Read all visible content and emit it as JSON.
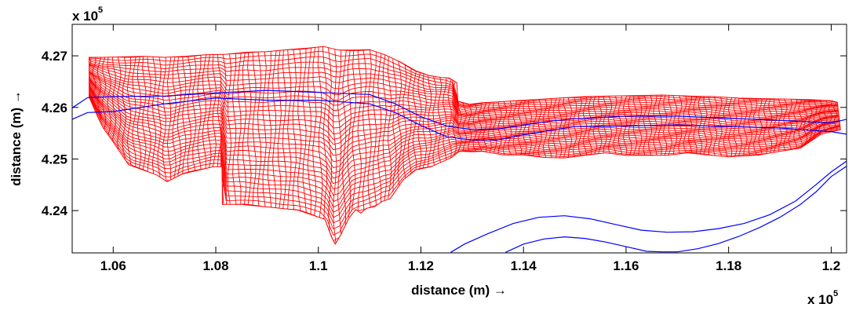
{
  "chart_data": {
    "type": "line",
    "xlabel": "distance (m) →",
    "ylabel": "distance (m) →",
    "x_multiplier": "x 10",
    "x_multiplier_exp": "5",
    "y_multiplier": "x 10",
    "y_multiplier_exp": "5",
    "xlim": [
      1.052,
      1.203
    ],
    "ylim": [
      4.2318,
      4.2761
    ],
    "x_ticks": [
      1.06,
      1.08,
      1.1,
      1.12,
      1.14,
      1.16,
      1.18,
      1.2
    ],
    "x_tick_labels": [
      "1.06",
      "1.08",
      "1.1",
      "1.12",
      "1.14",
      "1.16",
      "1.18",
      "1.2"
    ],
    "y_ticks": [
      4.24,
      4.25,
      4.26,
      4.27
    ],
    "y_tick_labels": [
      "4.24",
      "4.25",
      "4.26",
      "4.27"
    ],
    "grid": false,
    "colors": {
      "mesh": "#ff0000",
      "channel": "#0000ff",
      "axes": "#000000"
    },
    "series": [
      {
        "kind": "mesh-outline",
        "top": [
          [
            1.0553,
            4.2697
          ],
          [
            1.058,
            4.2697
          ],
          [
            1.062,
            4.2698
          ],
          [
            1.066,
            4.2699
          ],
          [
            1.07,
            4.2697
          ],
          [
            1.074,
            4.2699
          ],
          [
            1.078,
            4.2702
          ],
          [
            1.082,
            4.2703
          ],
          [
            1.086,
            4.2707
          ],
          [
            1.09,
            4.2708
          ],
          [
            1.094,
            4.2712
          ],
          [
            1.098,
            4.2715
          ],
          [
            1.101,
            4.2718
          ],
          [
            1.104,
            4.2711
          ],
          [
            1.107,
            4.2711
          ],
          [
            1.11,
            4.2712
          ],
          [
            1.113,
            4.2702
          ],
          [
            1.116,
            4.2688
          ],
          [
            1.119,
            4.2671
          ],
          [
            1.1215,
            4.2662
          ],
          [
            1.124,
            4.2658
          ],
          [
            1.1255,
            4.2657
          ],
          [
            1.127,
            4.2648
          ],
          [
            1.1272,
            4.2612
          ],
          [
            1.1295,
            4.2606
          ],
          [
            1.132,
            4.2609
          ],
          [
            1.137,
            4.2612
          ],
          [
            1.142,
            4.2615
          ],
          [
            1.147,
            4.2618
          ],
          [
            1.152,
            4.2621
          ],
          [
            1.157,
            4.2622
          ],
          [
            1.162,
            4.2623
          ],
          [
            1.167,
            4.2624
          ],
          [
            1.172,
            4.2622
          ],
          [
            1.177,
            4.2621
          ],
          [
            1.182,
            4.2618
          ],
          [
            1.187,
            4.2617
          ],
          [
            1.192,
            4.2616
          ],
          [
            1.196,
            4.2615
          ],
          [
            1.2,
            4.2613
          ],
          [
            1.2012,
            4.261
          ]
        ],
        "bottom": [
          [
            1.2018,
            4.2557
          ],
          [
            1.198,
            4.2548
          ],
          [
            1.194,
            4.2521
          ],
          [
            1.19,
            4.2515
          ],
          [
            1.186,
            4.2508
          ],
          [
            1.18,
            4.2504
          ],
          [
            1.176,
            4.2508
          ],
          [
            1.172,
            4.2512
          ],
          [
            1.168,
            4.2507
          ],
          [
            1.164,
            4.2507
          ],
          [
            1.16,
            4.2507
          ],
          [
            1.156,
            4.2512
          ],
          [
            1.152,
            4.2507
          ],
          [
            1.148,
            4.2502
          ],
          [
            1.144,
            4.2503
          ],
          [
            1.14,
            4.2508
          ],
          [
            1.136,
            4.2508
          ],
          [
            1.132,
            4.2515
          ],
          [
            1.13,
            4.2514
          ],
          [
            1.1275,
            4.2515
          ],
          [
            1.126,
            4.2503
          ],
          [
            1.122,
            4.2485
          ],
          [
            1.119,
            4.2479
          ],
          [
            1.1165,
            4.2459
          ],
          [
            1.114,
            4.2423
          ],
          [
            1.1125,
            4.2418
          ],
          [
            1.111,
            4.2408
          ],
          [
            1.1093,
            4.2404
          ],
          [
            1.1083,
            4.2395
          ],
          [
            1.1073,
            4.2402
          ],
          [
            1.106,
            4.2386
          ],
          [
            1.1043,
            4.2352
          ],
          [
            1.1033,
            4.2335
          ],
          [
            1.1026,
            4.2348
          ],
          [
            1.1013,
            4.2383
          ],
          [
            1.096,
            4.2401
          ],
          [
            1.09,
            4.2407
          ],
          [
            1.085,
            4.2412
          ],
          [
            1.0813,
            4.2412
          ],
          [
            1.0812,
            4.2485
          ],
          [
            1.0795,
            4.2485
          ],
          [
            1.0735,
            4.2471
          ],
          [
            1.0705,
            4.2456
          ],
          [
            1.0685,
            4.2469
          ],
          [
            1.063,
            4.2489
          ],
          [
            1.06,
            4.2533
          ],
          [
            1.058,
            4.2561
          ],
          [
            1.057,
            4.2581
          ],
          [
            1.0553,
            4.262
          ]
        ]
      },
      {
        "kind": "channel-edge",
        "points": [
          [
            1.052,
            4.2599
          ],
          [
            1.055,
            4.2619
          ],
          [
            1.06,
            4.2621
          ],
          [
            1.07,
            4.2622
          ],
          [
            1.08,
            4.2628
          ],
          [
            1.09,
            4.2633
          ],
          [
            1.1,
            4.2629
          ],
          [
            1.11,
            4.2625
          ],
          [
            1.115,
            4.2607
          ],
          [
            1.12,
            4.2582
          ],
          [
            1.125,
            4.2564
          ],
          [
            1.13,
            4.2557
          ],
          [
            1.135,
            4.2558
          ],
          [
            1.14,
            4.2566
          ],
          [
            1.145,
            4.2573
          ],
          [
            1.15,
            4.2578
          ],
          [
            1.16,
            4.2583
          ],
          [
            1.17,
            4.2583
          ],
          [
            1.18,
            4.2579
          ],
          [
            1.19,
            4.2575
          ],
          [
            1.2,
            4.257
          ],
          [
            1.203,
            4.2577
          ]
        ]
      },
      {
        "kind": "channel-edge",
        "points": [
          [
            1.052,
            4.2577
          ],
          [
            1.055,
            4.259
          ],
          [
            1.06,
            4.2592
          ],
          [
            1.07,
            4.2607
          ],
          [
            1.08,
            4.2618
          ],
          [
            1.09,
            4.2614
          ],
          [
            1.1,
            4.2614
          ],
          [
            1.11,
            4.2607
          ],
          [
            1.115,
            4.259
          ],
          [
            1.12,
            4.2565
          ],
          [
            1.125,
            4.2543
          ],
          [
            1.13,
            4.2537
          ],
          [
            1.135,
            4.2537
          ],
          [
            1.14,
            4.2547
          ],
          [
            1.145,
            4.2555
          ],
          [
            1.15,
            4.2563
          ],
          [
            1.16,
            4.2564
          ],
          [
            1.17,
            4.2566
          ],
          [
            1.18,
            4.2563
          ],
          [
            1.19,
            4.256
          ],
          [
            1.2,
            4.2553
          ],
          [
            1.203,
            4.2548
          ]
        ]
      },
      {
        "kind": "channel-edge",
        "points": [
          [
            1.1258,
            4.2319
          ],
          [
            1.1285,
            4.2335
          ],
          [
            1.133,
            4.2355
          ],
          [
            1.138,
            4.2375
          ],
          [
            1.143,
            4.2387
          ],
          [
            1.148,
            4.239
          ],
          [
            1.153,
            4.2384
          ],
          [
            1.158,
            4.2373
          ],
          [
            1.163,
            4.2362
          ],
          [
            1.168,
            4.2358
          ],
          [
            1.173,
            4.2359
          ],
          [
            1.178,
            4.2365
          ],
          [
            1.183,
            4.2375
          ],
          [
            1.188,
            4.2392
          ],
          [
            1.193,
            4.2418
          ],
          [
            1.197,
            4.245
          ],
          [
            1.2,
            4.2475
          ],
          [
            1.203,
            4.2496
          ]
        ]
      },
      {
        "kind": "channel-edge",
        "points": [
          [
            1.1365,
            4.2319
          ],
          [
            1.14,
            4.2335
          ],
          [
            1.144,
            4.2345
          ],
          [
            1.148,
            4.2349
          ],
          [
            1.152,
            4.2346
          ],
          [
            1.156,
            4.2339
          ],
          [
            1.16,
            4.233
          ],
          [
            1.164,
            4.2321
          ],
          [
            1.167,
            4.232
          ],
          [
            1.17,
            4.232
          ],
          [
            1.174,
            4.2326
          ],
          [
            1.178,
            4.2336
          ],
          [
            1.182,
            4.235
          ],
          [
            1.186,
            4.2367
          ],
          [
            1.19,
            4.2387
          ],
          [
            1.194,
            4.2412
          ],
          [
            1.197,
            4.2436
          ],
          [
            1.2,
            4.2466
          ],
          [
            1.203,
            4.2486
          ]
        ]
      }
    ]
  }
}
